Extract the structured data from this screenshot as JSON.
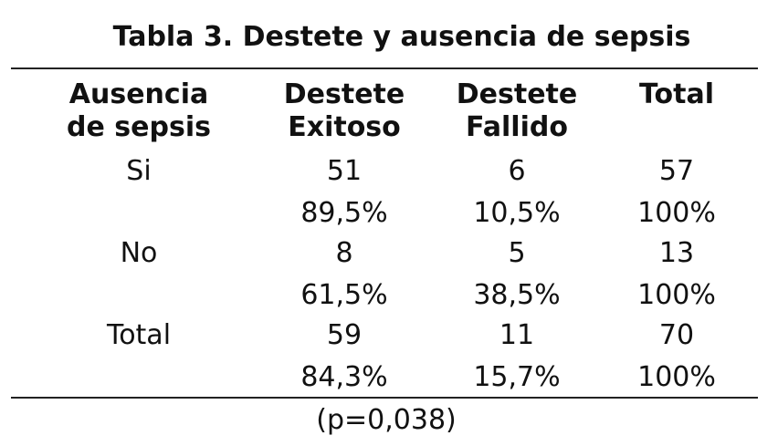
{
  "title": "Tabla 3. Destete y ausencia de sepsis",
  "table": {
    "header": [
      [
        "Ausencia",
        "de sepsis"
      ],
      [
        "Destete",
        "Exitoso"
      ],
      [
        "Destete",
        "Fallido"
      ],
      [
        "Total"
      ]
    ],
    "rows": [
      {
        "label": "Si",
        "counts": [
          "51",
          "6",
          "57"
        ],
        "percents": [
          "89,5%",
          "10,5%",
          "100%"
        ]
      },
      {
        "label": "No",
        "counts": [
          "8",
          "5",
          "13"
        ],
        "percents": [
          "61,5%",
          "38,5%",
          "100%"
        ]
      },
      {
        "label": "Total",
        "counts": [
          "59",
          "11",
          "70"
        ],
        "percents": [
          "84,3%",
          "15,7%",
          "100%"
        ]
      }
    ],
    "footer": "(p=0,038)"
  }
}
